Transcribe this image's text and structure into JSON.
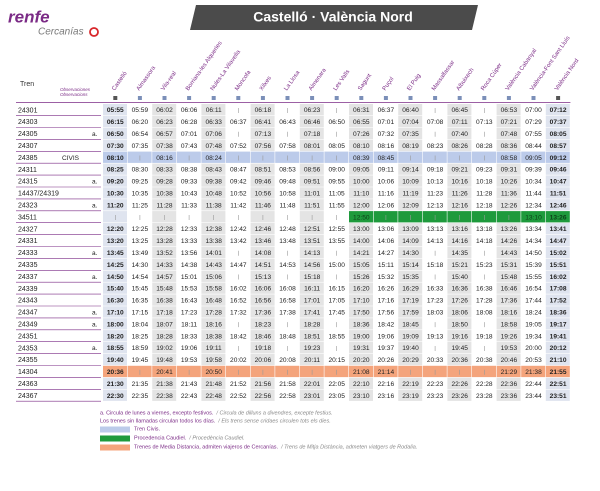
{
  "header": {
    "logo": "renfe",
    "brand": "Cercanías",
    "title": "Castelló · València Nord"
  },
  "table": {
    "train_label": "Tren",
    "obs_label": "Observaciones",
    "obs_label_va": "Observacions",
    "stations": [
      "Castelló",
      "Almassora",
      "Vila-real",
      "Borriana-les Alqueries",
      "Nules-La Vilavella",
      "Moncofa",
      "Xilxes",
      "La Llosa",
      "Almenara",
      "Les Valls",
      "Sagunt",
      "Puçol",
      "El Puig",
      "Massalfassar",
      "Albuixech",
      "Roca Cúper",
      "València Cabanyal",
      "València-Font Sant Lluís",
      "València Nord"
    ],
    "rows": [
      {
        "train": "24301",
        "note": null,
        "color": null,
        "times": [
          "05:55",
          "05:59",
          "06:02",
          "06:06",
          "06:11",
          null,
          "06:18",
          null,
          "06:23",
          null,
          "06:31",
          "06:37",
          "06:40",
          null,
          "06:45",
          null,
          "06:53",
          "07:00",
          "07:12"
        ]
      },
      {
        "train": "24303",
        "note": null,
        "color": null,
        "times": [
          "06:15",
          "06:20",
          "06:23",
          "06:28",
          "06:33",
          "06:37",
          "06:41",
          "06:43",
          "06:46",
          "06:50",
          "06:55",
          "07:01",
          "07:04",
          "07:08",
          "07:11",
          "07:13",
          "07:21",
          "07:29",
          "07:37"
        ]
      },
      {
        "train": "24305",
        "note": "a.",
        "color": null,
        "times": [
          "06:50",
          "06:54",
          "06:57",
          "07:01",
          "07:06",
          null,
          "07:13",
          null,
          "07:18",
          null,
          "07:26",
          "07:32",
          "07:35",
          null,
          "07:40",
          null,
          "07:48",
          "07:55",
          "08:05"
        ]
      },
      {
        "train": "24307",
        "note": null,
        "color": null,
        "times": [
          "07:30",
          "07:35",
          "07:38",
          "07:43",
          "07:48",
          "07:52",
          "07:56",
          "07:58",
          "08:01",
          "08:05",
          "08:10",
          "08:16",
          "08:19",
          "08:23",
          "08:26",
          "08:28",
          "08:36",
          "08:44",
          "08:57"
        ]
      },
      {
        "train": "24385",
        "note": "CIVIS",
        "color": "#bccbea",
        "times": [
          "08:10",
          null,
          "08:16",
          null,
          "08:24",
          null,
          null,
          null,
          null,
          null,
          "08:39",
          "08:45",
          null,
          null,
          null,
          null,
          "08:58",
          "09:05",
          "09:12"
        ]
      },
      {
        "train": "24311",
        "note": null,
        "color": null,
        "times": [
          "08:25",
          "08:30",
          "08:33",
          "08:38",
          "08:43",
          "08:47",
          "08:51",
          "08:53",
          "08:56",
          "09:00",
          "09:05",
          "09:11",
          "09:14",
          "09:18",
          "09:21",
          "09:23",
          "09:31",
          "09:39",
          "09:46"
        ]
      },
      {
        "train": "24315",
        "note": "a.",
        "color": null,
        "times": [
          "09:20",
          "09:25",
          "09:28",
          "09:33",
          "09:38",
          "09:42",
          "09:46",
          "09:48",
          "09:51",
          "09:55",
          "10:00",
          "10:06",
          "10:09",
          "10:13",
          "10:16",
          "10:18",
          "10:26",
          "10:34",
          "10:47"
        ]
      },
      {
        "train": "14437/24319",
        "note": null,
        "color": null,
        "times": [
          "10:30",
          "10:35",
          "10:38",
          "10:43",
          "10:48",
          "10:52",
          "10:56",
          "10:58",
          "11:01",
          "11:05",
          "11:10",
          "11:16",
          "11:19",
          "11:23",
          "11:26",
          "11:28",
          "11:36",
          "11:44",
          "11:51"
        ]
      },
      {
        "train": "24323",
        "note": "a.",
        "color": null,
        "times": [
          "11:20",
          "11:25",
          "11:28",
          "11:33",
          "11:38",
          "11:42",
          "11:46",
          "11:48",
          "11:51",
          "11:55",
          "12:00",
          "12:06",
          "12:09",
          "12:13",
          "12:16",
          "12:18",
          "12:26",
          "12:34",
          "12:46"
        ]
      },
      {
        "train": "34511",
        "note": null,
        "color": "#1e9a3c",
        "times": [
          null,
          null,
          null,
          null,
          null,
          null,
          null,
          null,
          null,
          null,
          "12:50",
          null,
          null,
          null,
          null,
          null,
          null,
          "13:10",
          "13:26"
        ]
      },
      {
        "train": "24327",
        "note": null,
        "color": null,
        "times": [
          "12:20",
          "12:25",
          "12:28",
          "12:33",
          "12:38",
          "12:42",
          "12:46",
          "12:48",
          "12:51",
          "12:55",
          "13:00",
          "13:06",
          "13:09",
          "13:13",
          "13:16",
          "13:18",
          "13:26",
          "13:34",
          "13:41"
        ]
      },
      {
        "train": "24331",
        "note": null,
        "color": null,
        "times": [
          "13:20",
          "13:25",
          "13:28",
          "13:33",
          "13:38",
          "13:42",
          "13:46",
          "13:48",
          "13:51",
          "13:55",
          "14:00",
          "14:06",
          "14:09",
          "14:13",
          "14:16",
          "14:18",
          "14:26",
          "14:34",
          "14:47"
        ]
      },
      {
        "train": "24333",
        "note": "a.",
        "color": null,
        "times": [
          "13:45",
          "13:49",
          "13:52",
          "13:56",
          "14:01",
          null,
          "14:08",
          null,
          "14:13",
          null,
          "14:21",
          "14:27",
          "14:30",
          null,
          "14:35",
          null,
          "14:43",
          "14:50",
          "15:02"
        ]
      },
      {
        "train": "24335",
        "note": null,
        "color": null,
        "times": [
          "14:25",
          "14:30",
          "14:33",
          "14:38",
          "14:43",
          "14:47",
          "14:51",
          "14:53",
          "14:56",
          "15:00",
          "15:05",
          "15:11",
          "15:14",
          "15:18",
          "15:21",
          "15:23",
          "15:31",
          "15:39",
          "15:51"
        ]
      },
      {
        "train": "24337",
        "note": "a.",
        "color": null,
        "times": [
          "14:50",
          "14:54",
          "14:57",
          "15:01",
          "15:06",
          null,
          "15:13",
          null,
          "15:18",
          null,
          "15:26",
          "15:32",
          "15:35",
          null,
          "15:40",
          null,
          "15:48",
          "15:55",
          "16:02"
        ]
      },
      {
        "train": "24339",
        "note": null,
        "color": null,
        "times": [
          "15:40",
          "15:45",
          "15:48",
          "15:53",
          "15:58",
          "16:02",
          "16:06",
          "16:08",
          "16:11",
          "16:15",
          "16:20",
          "16:26",
          "16:29",
          "16:33",
          "16:36",
          "16:38",
          "16:46",
          "16:54",
          "17:08"
        ]
      },
      {
        "train": "24343",
        "note": null,
        "color": null,
        "times": [
          "16:30",
          "16:35",
          "16:38",
          "16:43",
          "16:48",
          "16:52",
          "16:56",
          "16:58",
          "17:01",
          "17:05",
          "17:10",
          "17:16",
          "17:19",
          "17:23",
          "17:26",
          "17:28",
          "17:36",
          "17:44",
          "17:52"
        ]
      },
      {
        "train": "24347",
        "note": "a.",
        "color": null,
        "times": [
          "17:10",
          "17:15",
          "17:18",
          "17:23",
          "17:28",
          "17:32",
          "17:36",
          "17:38",
          "17:41",
          "17:45",
          "17:50",
          "17:56",
          "17:59",
          "18:03",
          "18:06",
          "18:08",
          "18:16",
          "18:24",
          "18:36"
        ]
      },
      {
        "train": "24349",
        "note": "a.",
        "color": null,
        "times": [
          "18:00",
          "18:04",
          "18:07",
          "18:11",
          "18:16",
          null,
          "18:23",
          null,
          "18:28",
          null,
          "18:36",
          "18:42",
          "18:45",
          null,
          "18:50",
          null,
          "18:58",
          "19:05",
          "19:17"
        ]
      },
      {
        "train": "24351",
        "note": null,
        "color": null,
        "times": [
          "18:20",
          "18:25",
          "18:28",
          "18:33",
          "18:38",
          "18:42",
          "18:46",
          "18:48",
          "18:51",
          "18:55",
          "19:00",
          "19:06",
          "19:09",
          "19:13",
          "19:16",
          "19:18",
          "19:26",
          "19:34",
          "19:41"
        ]
      },
      {
        "train": "24353",
        "note": "a.",
        "color": null,
        "times": [
          "18:55",
          "18:59",
          "19:02",
          "19:06",
          "19:11",
          null,
          "19:18",
          null,
          "19:23",
          null,
          "19:31",
          "19:37",
          "19:40",
          null,
          "19:45",
          null,
          "19:53",
          "20:00",
          "20:12"
        ]
      },
      {
        "train": "24355",
        "note": null,
        "color": null,
        "times": [
          "19:40",
          "19:45",
          "19:48",
          "19:53",
          "19:58",
          "20:02",
          "20:06",
          "20:08",
          "20:11",
          "20:15",
          "20:20",
          "20:26",
          "20:29",
          "20:33",
          "20:36",
          "20:38",
          "20:46",
          "20:53",
          "21:10"
        ]
      },
      {
        "train": "14304",
        "note": null,
        "color": "#f4a47c",
        "times": [
          "20:36",
          null,
          "20:41",
          null,
          "20:50",
          null,
          null,
          null,
          null,
          null,
          "21:08",
          "21:14",
          null,
          null,
          null,
          null,
          "21:29",
          "21:38",
          "21:55"
        ]
      },
      {
        "train": "24363",
        "note": null,
        "color": null,
        "times": [
          "21:30",
          "21:35",
          "21:38",
          "21:43",
          "21:48",
          "21:52",
          "21:56",
          "21:58",
          "22:01",
          "22:05",
          "22:10",
          "22:16",
          "22:19",
          "22:23",
          "22:26",
          "22:28",
          "22:36",
          "22:44",
          "22:51"
        ]
      },
      {
        "train": "24367",
        "note": null,
        "color": null,
        "times": [
          "22:30",
          "22:35",
          "22:38",
          "22:43",
          "22:48",
          "22:52",
          "22:56",
          "22:58",
          "23:01",
          "23:05",
          "23:10",
          "23:16",
          "23:19",
          "23:23",
          "23:26",
          "23:28",
          "23:36",
          "23:44",
          "23:51"
        ]
      }
    ]
  },
  "notes": [
    {
      "es": "a. Circula de lunes a viernes, excepto festivos.",
      "va": "/ Circula de dilluns a divendres, excepte festius."
    },
    {
      "es": "Los trenes sin llamadas circulan todos los días.",
      "va": "/ Els trens sense cridaes circulen tots els dies."
    }
  ],
  "legend": [
    {
      "color": "#bccbea",
      "es": "Tren Civis.",
      "va": null
    },
    {
      "color": "#1e9a3c",
      "es": "Procedencia Caudiel.",
      "va": "/ Procedència Caudiel."
    },
    {
      "color": "#f4a47c",
      "es": "Trenes de Media Distancia, admiten viajeros de Cercanías.",
      "va": "/ Trens de Mitja Distància, admeten viatgers de Rodalia."
    }
  ]
}
